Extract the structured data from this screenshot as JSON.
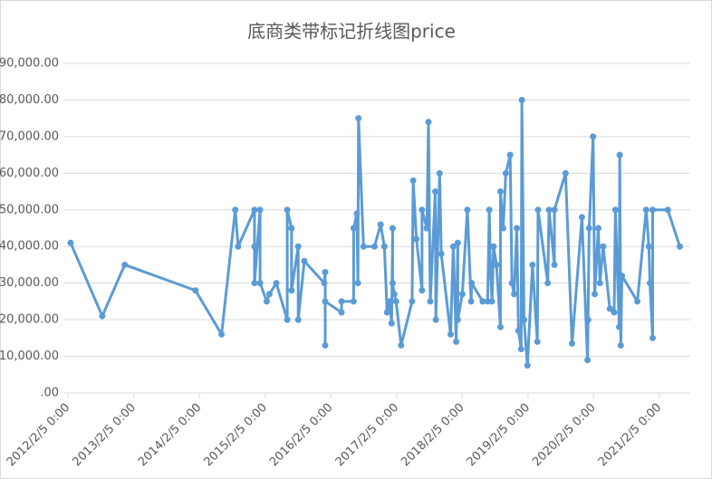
{
  "chart_data": {
    "type": "line",
    "title": "底商类带标记折线图price",
    "color": "#5b9bd5",
    "grid": true,
    "markers": true,
    "xlim": [
      "2012-01-11",
      "2021-07-26"
    ],
    "xticks": [
      {
        "value": "2012-02-05",
        "label": "2012/2/5 0:00"
      },
      {
        "value": "2013-02-05",
        "label": "2013/2/5 0:00"
      },
      {
        "value": "2014-02-05",
        "label": "2014/2/5 0:00"
      },
      {
        "value": "2015-02-05",
        "label": "2015/2/5 0:00"
      },
      {
        "value": "2016-02-05",
        "label": "2016/2/5 0:00"
      },
      {
        "value": "2017-02-05",
        "label": "2017/2/5 0:00"
      },
      {
        "value": "2018-02-05",
        "label": "2018/2/5 0:00"
      },
      {
        "value": "2019-02-05",
        "label": "2019/2/5 0:00"
      },
      {
        "value": "2020-02-05",
        "label": "2020/2/5 0:00"
      },
      {
        "value": "2021-02-05",
        "label": "2021/2/5 0:00"
      }
    ],
    "ylim": [
      0,
      90000
    ],
    "yticks": [
      {
        "value": 0,
        "label": ".00"
      },
      {
        "value": 10000,
        "label": "10,000.00"
      },
      {
        "value": 20000,
        "label": "20,000.00"
      },
      {
        "value": 30000,
        "label": "30,000.00"
      },
      {
        "value": 40000,
        "label": "40,000.00"
      },
      {
        "value": 50000,
        "label": "50,000.00"
      },
      {
        "value": 60000,
        "label": "60,000.00"
      },
      {
        "value": 70000,
        "label": "70,000.00"
      },
      {
        "value": 80000,
        "label": "80,000.00"
      },
      {
        "value": 90000,
        "label": "90,000.00"
      }
    ],
    "x": [
      "2012-02-20",
      "2012-08-14",
      "2012-12-17",
      "2014-01-14",
      "2014-06-08",
      "2014-08-23",
      "2014-09-08",
      "2014-12-08",
      "2014-12-08",
      "2014-12-08",
      "2015-01-08",
      "2015-01-08",
      "2015-02-14",
      "2015-03-01",
      "2015-04-08",
      "2015-06-08",
      "2015-06-08",
      "2015-07-02",
      "2015-07-02",
      "2015-08-08",
      "2015-08-08",
      "2015-09-11",
      "2015-12-31",
      "2016-01-05",
      "2016-01-05",
      "2016-01-05",
      "2016-04-05",
      "2016-04-05",
      "2016-06-11",
      "2016-06-11",
      "2016-06-29",
      "2016-07-05",
      "2016-07-08",
      "2016-08-05",
      "2016-10-05",
      "2016-11-08",
      "2016-11-29",
      "2016-12-14",
      "2016-12-29",
      "2017-01-08",
      "2017-01-14",
      "2017-01-14",
      "2017-01-23",
      "2017-02-02",
      "2017-03-02",
      "2017-05-02",
      "2017-05-08",
      "2017-05-26",
      "2017-06-26",
      "2017-06-26",
      "2017-07-23",
      "2017-08-01",
      "2017-08-11",
      "2017-09-08",
      "2017-09-11",
      "2017-10-02",
      "2017-10-11",
      "2017-12-02",
      "2017-12-17",
      "2018-01-02",
      "2018-01-11",
      "2018-01-11",
      "2018-02-05",
      "2018-03-05",
      "2018-03-26",
      "2018-03-29",
      "2018-05-29",
      "2018-06-26",
      "2018-07-05",
      "2018-07-11",
      "2018-07-20",
      "2018-07-29",
      "2018-08-14",
      "2018-09-05",
      "2018-09-05",
      "2018-09-20",
      "2018-10-05",
      "2018-10-29",
      "2018-11-08",
      "2018-11-20",
      "2018-12-05",
      "2018-12-14",
      "2018-12-29",
      "2019-01-02",
      "2019-01-14",
      "2019-02-02",
      "2019-03-02",
      "2019-03-29",
      "2019-04-02",
      "2019-05-26",
      "2019-06-02",
      "2019-07-02",
      "2019-07-02",
      "2019-09-02",
      "2019-10-08",
      "2019-12-02",
      "2020-01-02",
      "2020-01-05",
      "2020-01-11",
      "2020-02-02",
      "2020-02-11",
      "2020-03-02",
      "2020-03-11",
      "2020-03-29",
      "2020-05-05",
      "2020-05-29",
      "2020-06-05",
      "2020-06-26",
      "2020-06-29",
      "2020-07-05",
      "2020-07-11",
      "2020-10-05",
      "2020-11-23",
      "2020-12-08",
      "2020-12-14",
      "2020-12-29",
      "2020-12-29",
      "2021-03-23",
      "2021-05-29"
    ],
    "values": [
      41000,
      21000,
      35000,
      28000,
      16000,
      50000,
      40000,
      50000,
      40000,
      30000,
      50000,
      30000,
      25000,
      27000,
      30000,
      20000,
      50000,
      45000,
      28000,
      40000,
      20000,
      36000,
      30000,
      33000,
      13000,
      25000,
      22000,
      25000,
      25000,
      45000,
      49000,
      30000,
      75000,
      40000,
      40000,
      46000,
      40000,
      22000,
      25000,
      19000,
      45000,
      30000,
      27000,
      25000,
      13000,
      25000,
      58000,
      42000,
      28000,
      50000,
      45000,
      74000,
      25000,
      55000,
      20000,
      60000,
      38000,
      16000,
      40000,
      14000,
      41000,
      20000,
      27000,
      50000,
      25000,
      30000,
      25000,
      25000,
      50000,
      35000,
      25000,
      40000,
      35000,
      18000,
      55000,
      45000,
      60000,
      65000,
      30000,
      27000,
      45000,
      17000,
      12000,
      80000,
      20000,
      7500,
      35000,
      14000,
      50000,
      30000,
      50000,
      35000,
      50000,
      60000,
      13500,
      48000,
      9000,
      20000,
      45000,
      70000,
      27000,
      45000,
      30000,
      40000,
      23000,
      22000,
      50000,
      18000,
      65000,
      13000,
      32000,
      25000,
      50000,
      40000,
      30000,
      15000,
      50000,
      50000,
      40000
    ]
  }
}
